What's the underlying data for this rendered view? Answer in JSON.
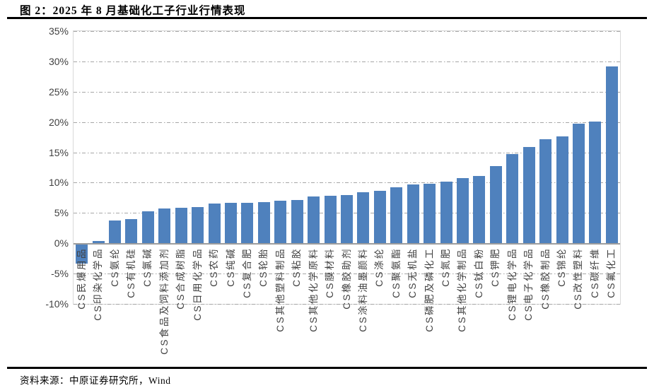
{
  "figure": {
    "title": "图 2：2025 年 8 月基础化工子行业行情表现",
    "source": "资料来源：中原证券研究所，Wind"
  },
  "chart_data": {
    "type": "bar",
    "title": "2025年8月基础化工子行业行情表现",
    "categories": [
      "CS民爆用品",
      "CS印染化学品",
      "CS氨纶",
      "CS有机硅",
      "CS氯碱",
      "CS食品及饲料添加剂",
      "CS合成树脂",
      "CS日用化学品",
      "CS农药",
      "CS纯碱",
      "CS复合肥",
      "CS轮胎",
      "CS其他塑料制品",
      "CS粘胶",
      "CS其他化学原料",
      "CS膜材料",
      "CS橡胶助剂",
      "CS涂料油墨颜料",
      "CS涤纶",
      "CS聚氨酯",
      "CS无机盐",
      "CS磷肥及磷化工",
      "CS氮肥",
      "CS其他化学制品",
      "CS钛白粉",
      "CS钾肥",
      "CS锂电化学品",
      "CS电子化学品",
      "CS橡胶制品",
      "CS锦纶",
      "CS改性塑料",
      "CS碳纤维",
      "CS氟化工"
    ],
    "values": [
      -3.4,
      0.4,
      3.8,
      4.0,
      5.3,
      5.7,
      5.8,
      6.0,
      6.5,
      6.7,
      6.7,
      6.8,
      7.0,
      7.1,
      7.7,
      7.8,
      7.9,
      8.4,
      8.6,
      9.2,
      9.7,
      9.8,
      10.2,
      10.7,
      11.1,
      12.7,
      14.7,
      15.9,
      17.2,
      17.6,
      19.7,
      20.1,
      29.2
    ],
    "value_unit": "%",
    "xlabel": "",
    "ylabel": "",
    "ylim": [
      -10,
      35
    ],
    "ytick_step": 5,
    "ytick_labels": [
      "35%",
      "30%",
      "25%",
      "20%",
      "15%",
      "10%",
      "5%",
      "0%",
      "-5%",
      "-10%"
    ],
    "bar_color": "#4F81BD",
    "gridline_color": "#a6a6a6",
    "axis_line_color": "#9d9d9d",
    "grid": "horizontal dash-dot",
    "legend": "none"
  }
}
